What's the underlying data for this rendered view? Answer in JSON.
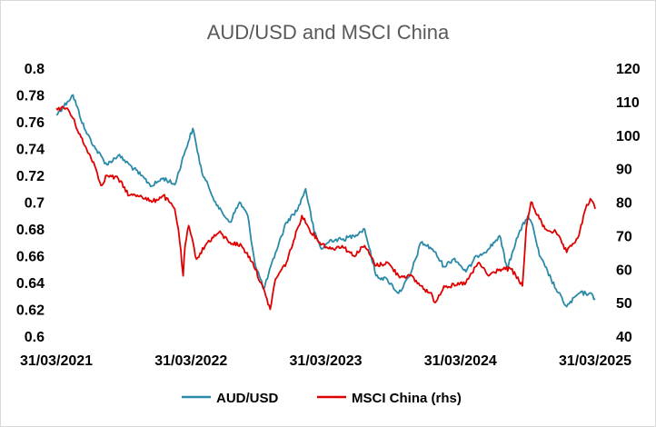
{
  "chart_data": {
    "type": "line",
    "title": "AUD/USD and MSCI China",
    "x_axis": {
      "type": "date",
      "range": [
        "2021-03-31",
        "2025-03-31"
      ],
      "tick_labels": [
        "31/03/2021",
        "31/03/2022",
        "31/03/2023",
        "31/03/2024",
        "31/03/2025"
      ]
    },
    "y_left": {
      "range": [
        0.6,
        0.8
      ],
      "tick_labels": [
        "0.6",
        "0.62",
        "0.64",
        "0.66",
        "0.68",
        "0.7",
        "0.72",
        "0.74",
        "0.76",
        "0.78",
        "0.8"
      ]
    },
    "y_right": {
      "range": [
        40,
        120
      ],
      "tick_labels": [
        "40",
        "50",
        "60",
        "70",
        "80",
        "90",
        "100",
        "110",
        "120"
      ]
    },
    "grid": false,
    "legend_position": "bottom",
    "series": [
      {
        "name": "AUD/USD",
        "axis": "left",
        "color": "#2a8aa8",
        "x": [
          "2021-03-31",
          "2021-04-30",
          "2021-05-15",
          "2021-06-15",
          "2021-07-15",
          "2021-08-15",
          "2021-09-15",
          "2021-10-15",
          "2021-11-15",
          "2021-12-15",
          "2022-01-15",
          "2022-02-15",
          "2022-03-15",
          "2022-04-05",
          "2022-04-30",
          "2022-05-20",
          "2022-06-15",
          "2022-07-15",
          "2022-08-10",
          "2022-09-01",
          "2022-09-20",
          "2022-10-15",
          "2022-11-15",
          "2022-12-15",
          "2023-01-15",
          "2023-02-05",
          "2023-02-28",
          "2023-03-20",
          "2023-04-15",
          "2023-05-15",
          "2023-06-15",
          "2023-07-15",
          "2023-08-15",
          "2023-09-15",
          "2023-10-15",
          "2023-11-15",
          "2023-12-15",
          "2024-01-15",
          "2024-02-15",
          "2024-03-15",
          "2024-04-15",
          "2024-05-15",
          "2024-06-15",
          "2024-07-15",
          "2024-08-05",
          "2024-08-30",
          "2024-09-30",
          "2024-10-15",
          "2024-10-31",
          "2024-11-15",
          "2024-12-15",
          "2025-01-13",
          "2025-02-15",
          "2025-03-15",
          "2025-03-31"
        ],
        "values": [
          0.765,
          0.775,
          0.78,
          0.755,
          0.74,
          0.728,
          0.735,
          0.728,
          0.72,
          0.712,
          0.718,
          0.713,
          0.738,
          0.755,
          0.722,
          0.71,
          0.695,
          0.685,
          0.7,
          0.69,
          0.655,
          0.635,
          0.662,
          0.685,
          0.695,
          0.71,
          0.678,
          0.665,
          0.672,
          0.672,
          0.675,
          0.68,
          0.645,
          0.642,
          0.632,
          0.645,
          0.67,
          0.665,
          0.652,
          0.658,
          0.648,
          0.66,
          0.665,
          0.675,
          0.65,
          0.673,
          0.69,
          0.68,
          0.66,
          0.652,
          0.635,
          0.622,
          0.632,
          0.632,
          0.628
        ]
      },
      {
        "name": "MSCI China (rhs)",
        "axis": "right",
        "color": "#e00000",
        "x": [
          "2021-03-31",
          "2021-04-30",
          "2021-05-15",
          "2021-06-15",
          "2021-07-10",
          "2021-07-30",
          "2021-08-15",
          "2021-09-15",
          "2021-10-15",
          "2021-11-15",
          "2021-12-15",
          "2022-01-15",
          "2022-02-15",
          "2022-02-25",
          "2022-03-10",
          "2022-03-15",
          "2022-03-25",
          "2022-04-15",
          "2022-05-15",
          "2022-06-15",
          "2022-07-15",
          "2022-08-15",
          "2022-09-15",
          "2022-10-20",
          "2022-11-01",
          "2022-11-15",
          "2022-12-15",
          "2023-01-26",
          "2023-02-15",
          "2023-03-15",
          "2023-04-15",
          "2023-05-15",
          "2023-06-15",
          "2023-07-15",
          "2023-08-15",
          "2023-09-15",
          "2023-10-15",
          "2023-11-15",
          "2023-12-15",
          "2024-01-15",
          "2024-01-22",
          "2024-02-15",
          "2024-03-15",
          "2024-04-15",
          "2024-05-20",
          "2024-06-15",
          "2024-07-15",
          "2024-08-15",
          "2024-09-15",
          "2024-09-25",
          "2024-10-08",
          "2024-10-31",
          "2024-11-15",
          "2024-12-15",
          "2025-01-13",
          "2025-02-15",
          "2025-03-05",
          "2025-03-18",
          "2025-03-31"
        ],
        "values": [
          108,
          108,
          105,
          97,
          92,
          85,
          88,
          87,
          82,
          82,
          80,
          82,
          78,
          72,
          58,
          67,
          73,
          63,
          68,
          71,
          68,
          67,
          62,
          52,
          48,
          57,
          62,
          76,
          72,
          68,
          66,
          67,
          64,
          67,
          61,
          62,
          58,
          58,
          55,
          52,
          50,
          55,
          55,
          56,
          62,
          58,
          60,
          60,
          55,
          72,
          80,
          75,
          72,
          71,
          65,
          70,
          78,
          81,
          78
        ]
      }
    ]
  },
  "legend": {
    "items": [
      {
        "label": "AUD/USD",
        "color": "#2a8aa8"
      },
      {
        "label": "MSCI China (rhs)",
        "color": "#e00000"
      }
    ]
  }
}
